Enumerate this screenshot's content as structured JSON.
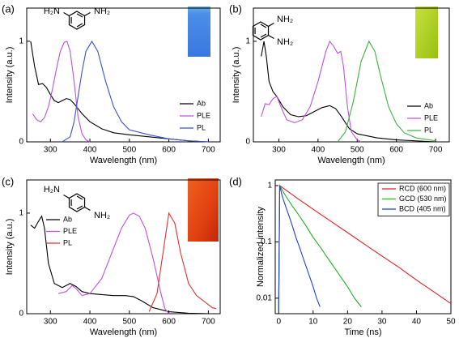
{
  "chart_data": [
    {
      "type": "line",
      "panel_label": "(a)",
      "molecule_labels": [
        "H₂N",
        "NH₂"
      ],
      "xlabel": "Wavelength (nm)",
      "ylabel": "Intensity (a.u.)",
      "xlim": [
        240,
        730
      ],
      "ylim": [
        0,
        1.33
      ],
      "xticks": [
        300,
        400,
        500,
        600,
        700
      ],
      "yticks": [
        0,
        1
      ],
      "series": [
        {
          "name": "Ab",
          "color": "#000000",
          "x": [
            250,
            260,
            270,
            280,
            290,
            300,
            310,
            320,
            330,
            340,
            350,
            360,
            380,
            400,
            430,
            460,
            500,
            550,
            600,
            650,
            700,
            720
          ],
          "values": [
            1.0,
            0.75,
            0.57,
            0.58,
            0.54,
            0.47,
            0.41,
            0.39,
            0.41,
            0.43,
            0.42,
            0.38,
            0.28,
            0.2,
            0.13,
            0.09,
            0.07,
            0.05,
            0.03,
            0.01,
            0,
            0
          ]
        },
        {
          "name": "PLE",
          "color": "#c050e0",
          "x": [
            255,
            265,
            275,
            285,
            295,
            305,
            315,
            325,
            335,
            342,
            350,
            360,
            370,
            380,
            390,
            400
          ],
          "values": [
            0.28,
            0.22,
            0.2,
            0.24,
            0.35,
            0.52,
            0.72,
            0.9,
            0.99,
            1.0,
            0.9,
            0.6,
            0.25,
            0.08,
            0.02,
            0
          ]
        },
        {
          "name": "PL",
          "color": "#3a50d0",
          "x": [
            330,
            350,
            360,
            370,
            380,
            390,
            405,
            420,
            440,
            460,
            480,
            500,
            550,
            600,
            650,
            700
          ],
          "values": [
            0,
            0.05,
            0.2,
            0.45,
            0.7,
            0.9,
            1.0,
            0.9,
            0.6,
            0.35,
            0.2,
            0.12,
            0.07,
            0.03,
            0.01,
            0
          ]
        }
      ]
    },
    {
      "type": "line",
      "panel_label": "(b)",
      "molecule_labels": [
        "NH₂",
        "NH₂"
      ],
      "xlabel": "Wavelength (nm)",
      "ylabel": "Intensity (a.u.)",
      "xlim": [
        235,
        735
      ],
      "ylim": [
        0,
        1.33
      ],
      "xticks": [
        300,
        400,
        500,
        600,
        700
      ],
      "yticks": [
        0,
        1
      ],
      "series": [
        {
          "name": "Ab",
          "color": "#000000",
          "x": [
            255,
            262,
            268,
            275,
            285,
            295,
            310,
            330,
            350,
            370,
            390,
            410,
            430,
            445,
            460,
            480,
            500,
            550,
            600,
            650,
            700
          ],
          "values": [
            0.85,
            1.0,
            0.85,
            0.6,
            0.5,
            0.45,
            0.35,
            0.27,
            0.25,
            0.26,
            0.3,
            0.34,
            0.36,
            0.33,
            0.25,
            0.13,
            0.08,
            0.04,
            0.02,
            0.01,
            0
          ]
        },
        {
          "name": "PLE",
          "color": "#c050e0",
          "x": [
            255,
            265,
            275,
            285,
            295,
            305,
            320,
            340,
            360,
            380,
            400,
            420,
            430,
            440,
            450,
            458,
            465,
            475,
            485,
            500,
            510
          ],
          "values": [
            0.25,
            0.38,
            0.37,
            0.43,
            0.45,
            0.35,
            0.22,
            0.19,
            0.22,
            0.35,
            0.6,
            0.9,
            1.0,
            0.95,
            0.88,
            0.9,
            0.75,
            0.35,
            0.1,
            0.02,
            0
          ]
        },
        {
          "name": "PL",
          "color": "#3cb43c",
          "x": [
            450,
            470,
            490,
            510,
            530,
            545,
            560,
            580,
            600,
            620,
            650,
            700
          ],
          "values": [
            0,
            0.1,
            0.4,
            0.8,
            1.0,
            0.9,
            0.65,
            0.35,
            0.18,
            0.09,
            0.04,
            0.01
          ]
        }
      ]
    },
    {
      "type": "line",
      "panel_label": "(c)",
      "molecule_labels": [
        "H₂N",
        "NH₂"
      ],
      "xlabel": "Wavelength (nm)",
      "ylabel": "Intensity (a.u.)",
      "xlim": [
        240,
        730
      ],
      "ylim": [
        0,
        1.33
      ],
      "xticks": [
        300,
        400,
        500,
        600,
        700
      ],
      "yticks": [
        0,
        1
      ],
      "series": [
        {
          "name": "Ab",
          "color": "#000000",
          "x": [
            250,
            260,
            270,
            278,
            285,
            295,
            310,
            330,
            350,
            365,
            380,
            400,
            430,
            460,
            490,
            510,
            530,
            560,
            600,
            650,
            700
          ],
          "values": [
            0.88,
            0.85,
            0.92,
            0.97,
            0.85,
            0.5,
            0.3,
            0.26,
            0.3,
            0.27,
            0.22,
            0.2,
            0.19,
            0.18,
            0.18,
            0.17,
            0.13,
            0.06,
            0.02,
            0.005,
            0
          ]
        },
        {
          "name": "PLE",
          "color": "#c050e0",
          "x": [
            320,
            340,
            355,
            365,
            380,
            400,
            430,
            460,
            480,
            500,
            510,
            525,
            540,
            560,
            580,
            590,
            600
          ],
          "values": [
            0.2,
            0.22,
            0.28,
            0.25,
            0.18,
            0.2,
            0.35,
            0.65,
            0.85,
            0.98,
            1.0,
            0.97,
            0.85,
            0.55,
            0.2,
            0.05,
            0
          ]
        },
        {
          "name": "PL",
          "color": "#e03030",
          "x": [
            550,
            570,
            585,
            600,
            615,
            630,
            650,
            670,
            690,
            710,
            720
          ],
          "values": [
            0.02,
            0.2,
            0.6,
            1.0,
            0.9,
            0.6,
            0.3,
            0.18,
            0.12,
            0.06,
            0.05
          ]
        }
      ]
    },
    {
      "type": "line",
      "panel_label": "(d)",
      "xlabel": "Time (ns)",
      "ylabel": "Normalized intensity",
      "log_y": true,
      "xlim": [
        -1,
        50
      ],
      "ylim": [
        0.0053,
        1.26
      ],
      "xticks": [
        0,
        10,
        20,
        30,
        40,
        50
      ],
      "yticks": [
        0.01,
        0.1,
        1
      ],
      "series": [
        {
          "name": "RCD (600 nm)",
          "color": "#e02020",
          "x": [
            0,
            0.3,
            5,
            10,
            15,
            20,
            25,
            30,
            35,
            40,
            45,
            50
          ],
          "values": [
            0.006,
            1,
            0.62,
            0.38,
            0.236,
            0.146,
            0.09,
            0.056,
            0.035,
            0.021,
            0.013,
            0.008
          ]
        },
        {
          "name": "GCD (530 nm)",
          "color": "#20b020",
          "x": [
            0,
            0.3,
            2,
            4,
            6,
            8,
            10,
            12,
            14,
            16,
            18,
            20,
            22,
            24
          ],
          "values": [
            0.006,
            1,
            0.66,
            0.43,
            0.29,
            0.19,
            0.12,
            0.082,
            0.054,
            0.036,
            0.024,
            0.016,
            0.01,
            0.007
          ]
        },
        {
          "name": "BCD (405 nm)",
          "color": "#2040d0",
          "x": [
            0,
            0.3,
            1,
            2,
            3,
            4,
            5,
            6,
            7,
            8,
            9,
            10,
            11,
            12
          ],
          "values": [
            0.006,
            1,
            0.66,
            0.43,
            0.29,
            0.19,
            0.12,
            0.082,
            0.054,
            0.036,
            0.024,
            0.016,
            0.01,
            0.007
          ]
        }
      ]
    }
  ]
}
